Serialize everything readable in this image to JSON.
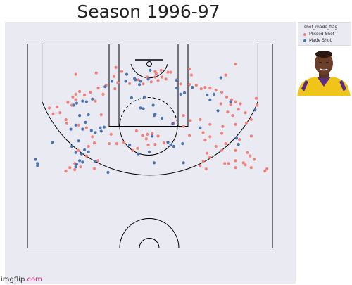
{
  "title": "Season 1996-97",
  "legend": {
    "title": "shot_made_flag",
    "items": [
      {
        "label": "Missed Shot",
        "color": "#f27f7a"
      },
      {
        "label": "Made Shot",
        "color": "#4a72b0"
      }
    ]
  },
  "watermark": {
    "brand": "imgflip",
    "suffix": ".com"
  },
  "colors": {
    "plot_bg": "#eaeaf2",
    "court_lines": "#000000",
    "missed": "#f27f7a",
    "made": "#4a72b0"
  },
  "icons": {
    "player_photo": "player-photo-icon"
  },
  "chart_data": {
    "type": "scatter",
    "title": "Season 1996-97",
    "xlabel": "",
    "ylabel": "",
    "xlim": [
      -250,
      250
    ],
    "ylim": [
      -50,
      420
    ],
    "grid": false,
    "legend_position": "outside-top-right",
    "series": [
      {
        "name": "Missed Shot",
        "color": "#f27f7a",
        "points": [
          [
            -170,
            312
          ],
          [
            -162,
            302
          ],
          [
            -152,
            308
          ],
          [
            -140,
            300
          ],
          [
            -112,
            305
          ],
          [
            -152,
            290
          ],
          [
            -128,
            268
          ],
          [
            -105,
            282
          ],
          [
            -145,
            252
          ],
          [
            -124,
            240
          ],
          [
            -112,
            230
          ],
          [
            -82,
            232
          ],
          [
            -78,
            205
          ],
          [
            -116,
            212
          ],
          [
            -128,
            186
          ],
          [
            -144,
            178
          ],
          [
            -168,
            172
          ],
          [
            -182,
            142
          ],
          [
            -196,
            145
          ],
          [
            -188,
            125
          ],
          [
            -166,
            112
          ],
          [
            -158,
            120
          ],
          [
            -150,
            104
          ],
          [
            -156,
            96
          ],
          [
            -150,
            88
          ],
          [
            -142,
            80
          ],
          [
            -132,
            90
          ],
          [
            -120,
            82
          ],
          [
            -104,
            70
          ],
          [
            -88,
            62
          ],
          [
            -70,
            72
          ],
          [
            -64,
            54
          ],
          [
            -40,
            57
          ],
          [
            -12,
            58
          ],
          [
            -22,
            46
          ],
          [
            -4,
            38
          ],
          [
            4,
            52
          ],
          [
            12,
            38
          ],
          [
            18,
            48
          ],
          [
            26,
            38
          ],
          [
            34,
            44
          ],
          [
            56,
            46
          ],
          [
            64,
            58
          ],
          [
            82,
            60
          ],
          [
            96,
            62
          ],
          [
            106,
            72
          ],
          [
            114,
            68
          ],
          [
            124,
            70
          ],
          [
            136,
            76
          ],
          [
            148,
            82
          ],
          [
            158,
            96
          ],
          [
            168,
            104
          ],
          [
            176,
            110
          ],
          [
            166,
            118
          ],
          [
            186,
            116
          ],
          [
            160,
            140
          ],
          [
            182,
            132
          ],
          [
            196,
            142
          ],
          [
            208,
            162
          ],
          [
            198,
            172
          ],
          [
            176,
            176
          ],
          [
            150,
            182
          ],
          [
            124,
            176
          ],
          [
            104,
            162
          ],
          [
            84,
            165
          ],
          [
            70,
            182
          ],
          [
            124,
            212
          ],
          [
            114,
            222
          ],
          [
            148,
            202
          ],
          [
            184,
            220
          ],
          [
            208,
            210
          ],
          [
            156,
            232
          ],
          [
            148,
            252
          ],
          [
            118,
            260
          ],
          [
            110,
            284
          ],
          [
            104,
            296
          ],
          [
            116,
            306
          ],
          [
            124,
            272
          ],
          [
            136,
            240
          ],
          [
            176,
            252
          ],
          [
            154,
            290
          ],
          [
            176,
            302
          ],
          [
            192,
            288
          ],
          [
            206,
            268
          ],
          [
            214,
            278
          ],
          [
            176,
            282
          ],
          [
            208,
            302
          ],
          [
            236,
            312
          ],
          [
            240,
            306
          ],
          [
            200,
            258
          ],
          [
            196,
            294
          ],
          [
            162,
            290
          ],
          [
            -2,
            236
          ],
          [
            -24,
            246
          ],
          [
            -34,
            252
          ],
          [
            -6,
            218
          ],
          [
            12,
            234
          ],
          [
            18,
            210
          ],
          [
            30,
            230
          ],
          [
            -52,
            228
          ],
          [
            -66,
            232
          ],
          [
            -26,
            195
          ],
          [
            -14,
            208
          ],
          [
            -4,
            205
          ],
          [
            6,
            202
          ],
          [
            82,
            208
          ],
          [
            50,
            172
          ],
          [
            70,
            150
          ],
          [
            -150,
            30
          ],
          [
            -108,
            26
          ],
          [
            -56,
            22
          ],
          [
            -68,
            10
          ],
          [
            24,
            18
          ],
          [
            12,
            22
          ],
          [
            38,
            24
          ],
          [
            82,
            14
          ],
          [
            156,
            32
          ],
          [
            176,
            0
          ],
          [
            220,
            120
          ],
          [
            218,
            100
          ],
          [
            86,
            32
          ],
          [
            -72,
            36
          ],
          [
            44,
            24
          ],
          [
            14,
            28
          ],
          [
            -94,
            88
          ],
          [
            -110,
            108
          ],
          [
            -170,
            162
          ],
          [
            -98,
            148
          ],
          [
            110,
            200
          ],
          [
            -204,
            128
          ],
          [
            170,
            150
          ],
          [
            146,
            116
          ]
        ]
      },
      {
        "name": "Made Shot",
        "color": "#4a72b0",
        "points": [
          [
            -228,
            296
          ],
          [
            -228,
            290
          ],
          [
            -232,
            278
          ],
          [
            -150,
            300
          ],
          [
            -148,
            292
          ],
          [
            -142,
            282
          ],
          [
            -136,
            286
          ],
          [
            -110,
            284
          ],
          [
            -84,
            316
          ],
          [
            -132,
            250
          ],
          [
            -138,
            262
          ],
          [
            -150,
            258
          ],
          [
            -124,
            256
          ],
          [
            -158,
            240
          ],
          [
            -144,
            224
          ],
          [
            -198,
            228
          ],
          [
            -136,
            190
          ],
          [
            -118,
            194
          ],
          [
            -110,
            200
          ],
          [
            -98,
            196
          ],
          [
            -100,
            186
          ],
          [
            -92,
            184
          ],
          [
            -160,
            190
          ],
          [
            -150,
            178
          ],
          [
            -130,
            170
          ],
          [
            -142,
            150
          ],
          [
            -124,
            148
          ],
          [
            -148,
            114
          ],
          [
            -154,
            120
          ],
          [
            -136,
            108
          ],
          [
            -128,
            110
          ],
          [
            -116,
            102
          ],
          [
            -90,
            66
          ],
          [
            -48,
            50
          ],
          [
            -28,
            46
          ],
          [
            -18,
            50
          ],
          [
            -2,
            44
          ],
          [
            56,
            48
          ],
          [
            88,
            68
          ],
          [
            118,
            90
          ],
          [
            132,
            88
          ],
          [
            166,
            110
          ],
          [
            216,
            134
          ],
          [
            140,
            136
          ],
          [
            124,
            104
          ],
          [
            10,
            288
          ],
          [
            0,
            256
          ],
          [
            -22,
            262
          ],
          [
            6,
            210
          ],
          [
            38,
            228
          ],
          [
            44,
            236
          ],
          [
            50,
            240
          ],
          [
            68,
            232
          ],
          [
            26,
            158
          ],
          [
            48,
            174
          ],
          [
            10,
            150
          ],
          [
            12,
            146
          ],
          [
            8,
            120
          ],
          [
            -12,
            130
          ],
          [
            -18,
            128
          ],
          [
            64,
            88
          ],
          [
            -36,
            98
          ],
          [
            -10,
            96
          ],
          [
            -20,
            60
          ],
          [
            -76,
            50
          ],
          [
            -46,
            30
          ],
          [
            2,
            18
          ],
          [
            56,
            70
          ],
          [
            72,
            84
          ],
          [
            146,
            40
          ],
          [
            70,
            288
          ],
          [
            -40,
            236
          ],
          [
            182,
            234
          ],
          [
            178,
            216
          ],
          [
            104,
            186
          ],
          [
            -30,
            42
          ]
        ]
      }
    ]
  }
}
